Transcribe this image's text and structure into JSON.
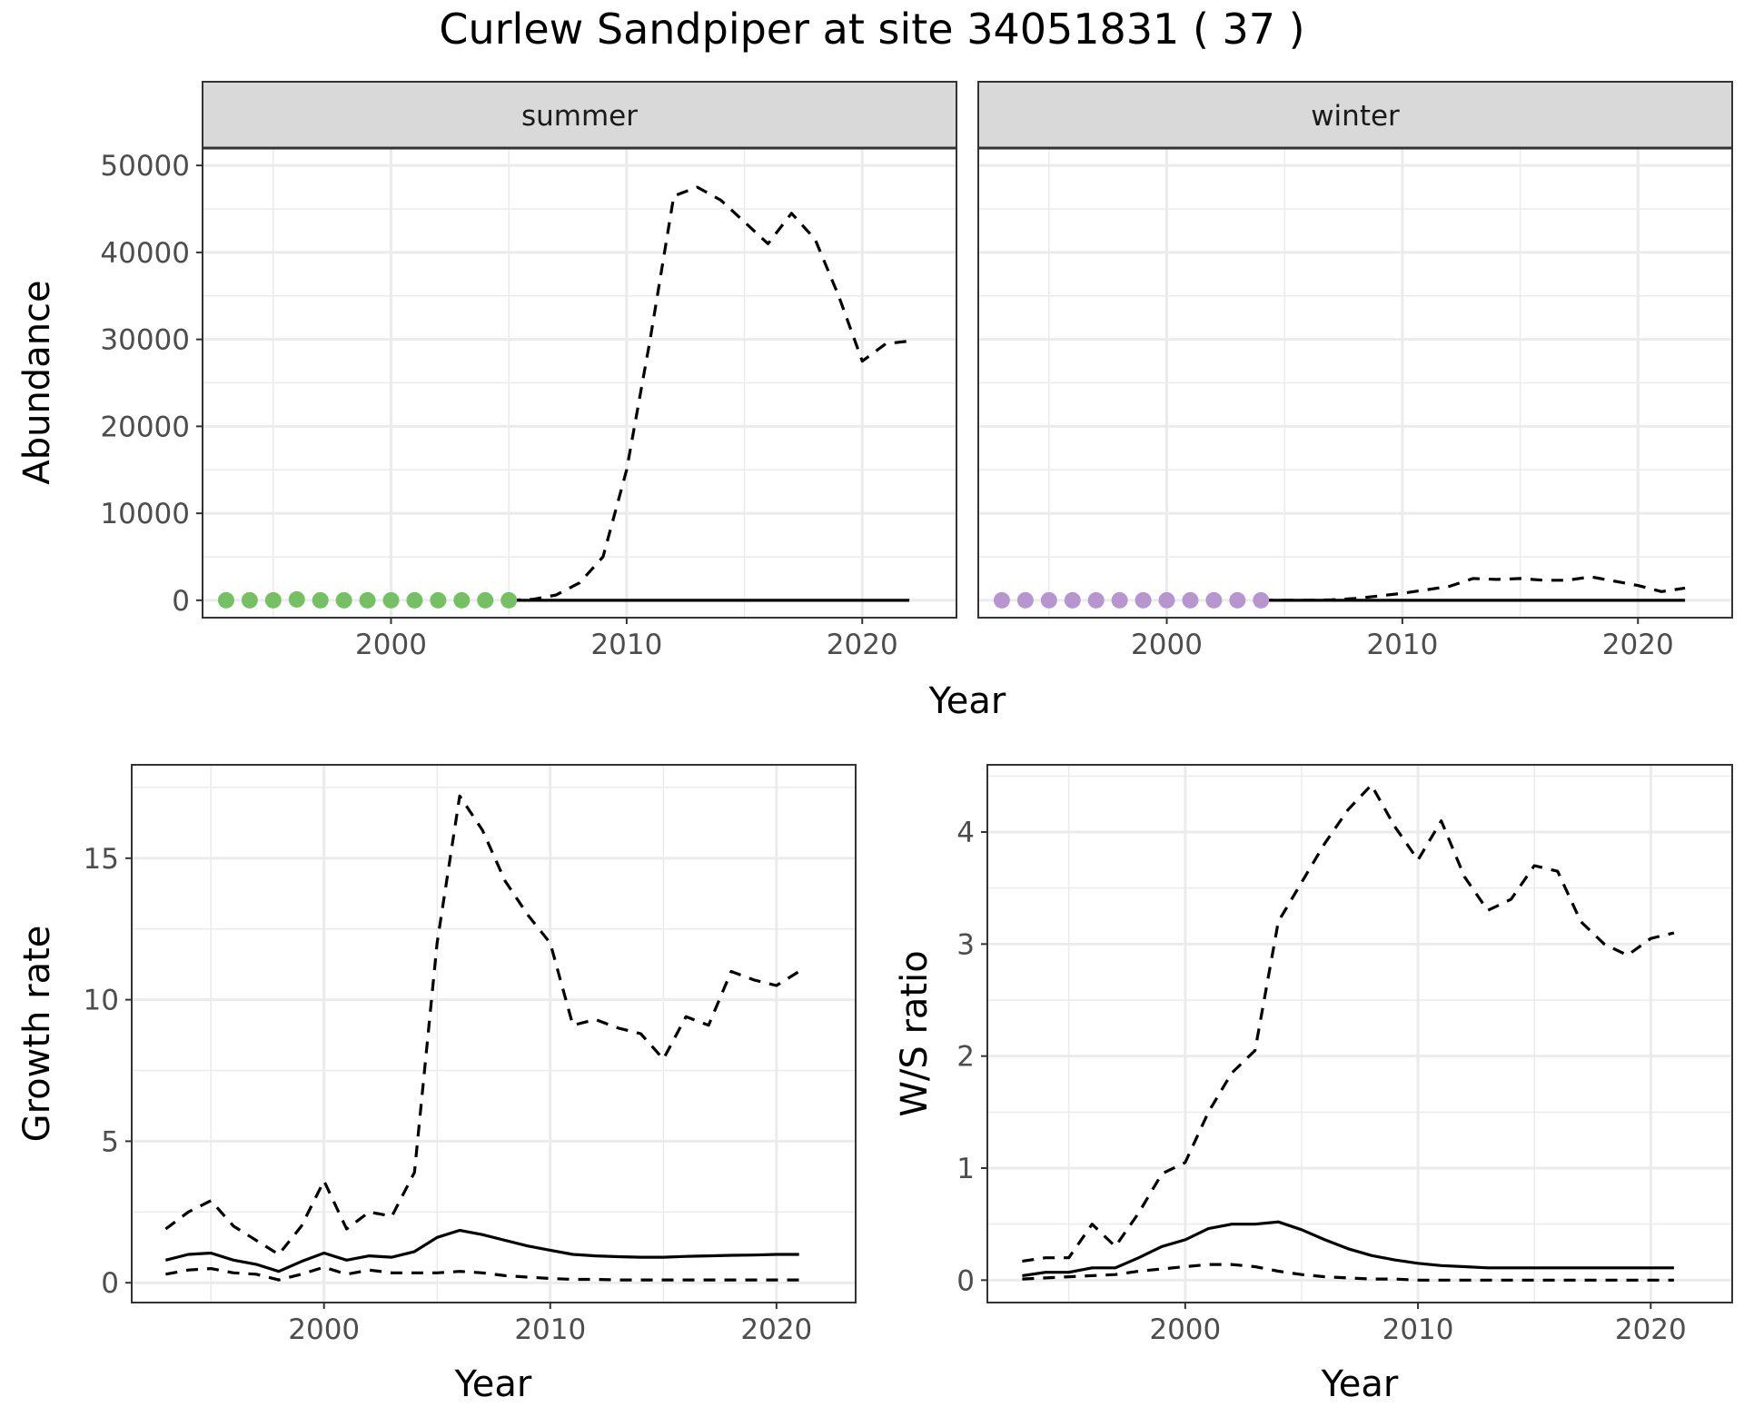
{
  "title": "Curlew Sandpiper at site 34051831 ( 37 )",
  "colors": {
    "summer_points": "#74c063",
    "winter_points": "#b795ce",
    "line": "#000000",
    "grid": "#ebebeb",
    "strip": "#d9d9d9"
  },
  "chart_data": [
    {
      "type": "line",
      "panel": "abundance",
      "facets": [
        "summer",
        "winter"
      ],
      "xlabel": "Year",
      "ylabel": "Abundance",
      "xlim": [
        1992,
        2024
      ],
      "ylim": [
        -2000,
        52000
      ],
      "x_ticks": [
        2000,
        2010,
        2020
      ],
      "x_tick_labels": [
        "2000",
        "2010",
        "2020"
      ],
      "y_ticks": [
        0,
        10000,
        20000,
        30000,
        40000,
        50000
      ],
      "y_tick_labels": [
        "0",
        "10000",
        "20000",
        "30000",
        "40000",
        "50000"
      ],
      "grid": true,
      "facet_data": [
        {
          "facet": "summer",
          "points": {
            "x": [
              1993,
              1994,
              1995,
              1996,
              1997,
              1998,
              1999,
              2000,
              2001,
              2002,
              2003,
              2004,
              2005
            ],
            "y": [
              0,
              0,
              0,
              100,
              0,
              0,
              0,
              0,
              0,
              0,
              0,
              0,
              0
            ]
          },
          "lines": [
            {
              "style": "dashed",
              "x": [
                2005,
                2006,
                2007,
                2008,
                2009,
                2010,
                2011,
                2012,
                2013,
                2014,
                2015,
                2016,
                2017,
                2018,
                2019,
                2020,
                2021,
                2022
              ],
              "y": [
                0,
                100,
                600,
                2000,
                5000,
                15000,
                30000,
                46500,
                47500,
                46000,
                43500,
                41000,
                44500,
                41500,
                35000,
                27500,
                29500,
                29800
              ]
            },
            {
              "style": "solid",
              "x": [
                2005,
                2010,
                2015,
                2020,
                2022
              ],
              "y": [
                0,
                0,
                0,
                0,
                0
              ]
            }
          ]
        },
        {
          "facet": "winter",
          "points": {
            "x": [
              1993,
              1994,
              1995,
              1996,
              1997,
              1998,
              1999,
              2000,
              2001,
              2002,
              2003,
              2004
            ],
            "y": [
              0,
              0,
              0,
              0,
              0,
              0,
              0,
              0,
              0,
              0,
              0,
              0
            ]
          },
          "lines": [
            {
              "style": "dashed",
              "x": [
                2004,
                2005,
                2006,
                2007,
                2008,
                2009,
                2010,
                2011,
                2012,
                2013,
                2014,
                2015,
                2016,
                2017,
                2018,
                2019,
                2020,
                2021,
                2022
              ],
              "y": [
                0,
                0,
                0,
                50,
                200,
                500,
                800,
                1200,
                1600,
                2500,
                2400,
                2500,
                2300,
                2300,
                2700,
                2200,
                1700,
                1000,
                1400
              ]
            },
            {
              "style": "solid",
              "x": [
                2004,
                2010,
                2015,
                2020,
                2022
              ],
              "y": [
                0,
                0,
                0,
                0,
                0
              ]
            }
          ]
        }
      ]
    },
    {
      "type": "line",
      "panel": "growth",
      "xlabel": "Year",
      "ylabel": "Growth rate",
      "xlim": [
        1991.5,
        2023.5
      ],
      "ylim": [
        -0.7,
        18.3
      ],
      "x_ticks": [
        2000,
        2010,
        2020
      ],
      "x_tick_labels": [
        "2000",
        "2010",
        "2020"
      ],
      "y_ticks": [
        0,
        5,
        10,
        15
      ],
      "y_tick_labels": [
        "0",
        "5",
        "10",
        "15"
      ],
      "grid": true,
      "series": [
        {
          "style": "dashed",
          "x": [
            1993,
            1994,
            1995,
            1996,
            1997,
            1998,
            1999,
            2000,
            2001,
            2002,
            2003,
            2004,
            2005,
            2006,
            2007,
            2008,
            2009,
            2010,
            2011,
            2012,
            2013,
            2014,
            2015,
            2016,
            2017,
            2018,
            2019,
            2020,
            2021
          ],
          "y": [
            1.9,
            2.5,
            2.9,
            2.0,
            1.5,
            1.0,
            2.0,
            3.6,
            1.9,
            2.5,
            2.35,
            3.9,
            12.0,
            17.2,
            16.0,
            14.2,
            13.0,
            12.0,
            9.1,
            9.3,
            9.0,
            8.8,
            7.9,
            9.4,
            9.1,
            11.0,
            10.7,
            10.5,
            11.0
          ]
        },
        {
          "style": "solid",
          "x": [
            1993,
            1994,
            1995,
            1996,
            1997,
            1998,
            1999,
            2000,
            2001,
            2002,
            2003,
            2004,
            2005,
            2006,
            2007,
            2008,
            2009,
            2010,
            2011,
            2012,
            2013,
            2014,
            2015,
            2016,
            2017,
            2018,
            2019,
            2020,
            2021
          ],
          "y": [
            0.8,
            1.0,
            1.05,
            0.8,
            0.65,
            0.4,
            0.75,
            1.05,
            0.8,
            0.95,
            0.9,
            1.1,
            1.6,
            1.85,
            1.7,
            1.5,
            1.3,
            1.15,
            1.0,
            0.95,
            0.92,
            0.9,
            0.9,
            0.93,
            0.95,
            0.97,
            0.98,
            1.0,
            1.0
          ]
        },
        {
          "style": "dashed",
          "x": [
            1993,
            1994,
            1995,
            1996,
            1997,
            1998,
            1999,
            2000,
            2001,
            2002,
            2003,
            2004,
            2005,
            2006,
            2007,
            2008,
            2009,
            2010,
            2011,
            2012,
            2013,
            2014,
            2015,
            2016,
            2017,
            2018,
            2019,
            2020,
            2021
          ],
          "y": [
            0.3,
            0.45,
            0.5,
            0.35,
            0.3,
            0.1,
            0.3,
            0.55,
            0.3,
            0.45,
            0.35,
            0.35,
            0.35,
            0.4,
            0.35,
            0.25,
            0.2,
            0.15,
            0.12,
            0.12,
            0.1,
            0.1,
            0.1,
            0.1,
            0.1,
            0.1,
            0.1,
            0.1,
            0.1
          ]
        }
      ]
    },
    {
      "type": "line",
      "panel": "ratio",
      "xlabel": "Year",
      "ylabel": "W/S ratio",
      "xlim": [
        1991.5,
        2023.5
      ],
      "ylim": [
        -0.2,
        4.6
      ],
      "x_ticks": [
        2000,
        2010,
        2020
      ],
      "x_tick_labels": [
        "2000",
        "2010",
        "2020"
      ],
      "y_ticks": [
        0,
        1,
        2,
        3,
        4
      ],
      "y_tick_labels": [
        "0",
        "1",
        "2",
        "3",
        "4"
      ],
      "grid": true,
      "series": [
        {
          "style": "dashed",
          "x": [
            1993,
            1994,
            1995,
            1996,
            1997,
            1998,
            1999,
            2000,
            2001,
            2002,
            2003,
            2004,
            2005,
            2006,
            2007,
            2008,
            2009,
            2010,
            2011,
            2012,
            2013,
            2014,
            2015,
            2016,
            2017,
            2018,
            2019,
            2020,
            2021
          ],
          "y": [
            0.17,
            0.2,
            0.2,
            0.5,
            0.3,
            0.6,
            0.95,
            1.05,
            1.5,
            1.85,
            2.05,
            3.2,
            3.55,
            3.9,
            4.2,
            4.42,
            4.05,
            3.75,
            4.1,
            3.6,
            3.3,
            3.4,
            3.7,
            3.65,
            3.2,
            3.0,
            2.9,
            3.05,
            3.1
          ]
        },
        {
          "style": "solid",
          "x": [
            1993,
            1994,
            1995,
            1996,
            1997,
            1998,
            1999,
            2000,
            2001,
            2002,
            2003,
            2004,
            2005,
            2006,
            2007,
            2008,
            2009,
            2010,
            2011,
            2012,
            2013,
            2014,
            2015,
            2016,
            2017,
            2018,
            2019,
            2020,
            2021
          ],
          "y": [
            0.04,
            0.07,
            0.07,
            0.11,
            0.11,
            0.2,
            0.3,
            0.36,
            0.46,
            0.5,
            0.5,
            0.52,
            0.45,
            0.36,
            0.28,
            0.22,
            0.18,
            0.15,
            0.13,
            0.12,
            0.11,
            0.11,
            0.11,
            0.11,
            0.11,
            0.11,
            0.11,
            0.11,
            0.11
          ]
        },
        {
          "style": "dashed",
          "x": [
            1993,
            1994,
            1995,
            1996,
            1997,
            1998,
            1999,
            2000,
            2001,
            2002,
            2003,
            2004,
            2005,
            2006,
            2007,
            2008,
            2009,
            2010,
            2011,
            2012,
            2013,
            2014,
            2015,
            2016,
            2017,
            2018,
            2019,
            2020,
            2021
          ],
          "y": [
            0.01,
            0.02,
            0.03,
            0.04,
            0.05,
            0.08,
            0.1,
            0.12,
            0.14,
            0.14,
            0.12,
            0.08,
            0.05,
            0.03,
            0.02,
            0.01,
            0.01,
            0.0,
            0.0,
            0.0,
            0.0,
            0.0,
            0.0,
            0.0,
            0.0,
            0.0,
            0.0,
            0.0,
            0.0
          ]
        }
      ]
    }
  ]
}
